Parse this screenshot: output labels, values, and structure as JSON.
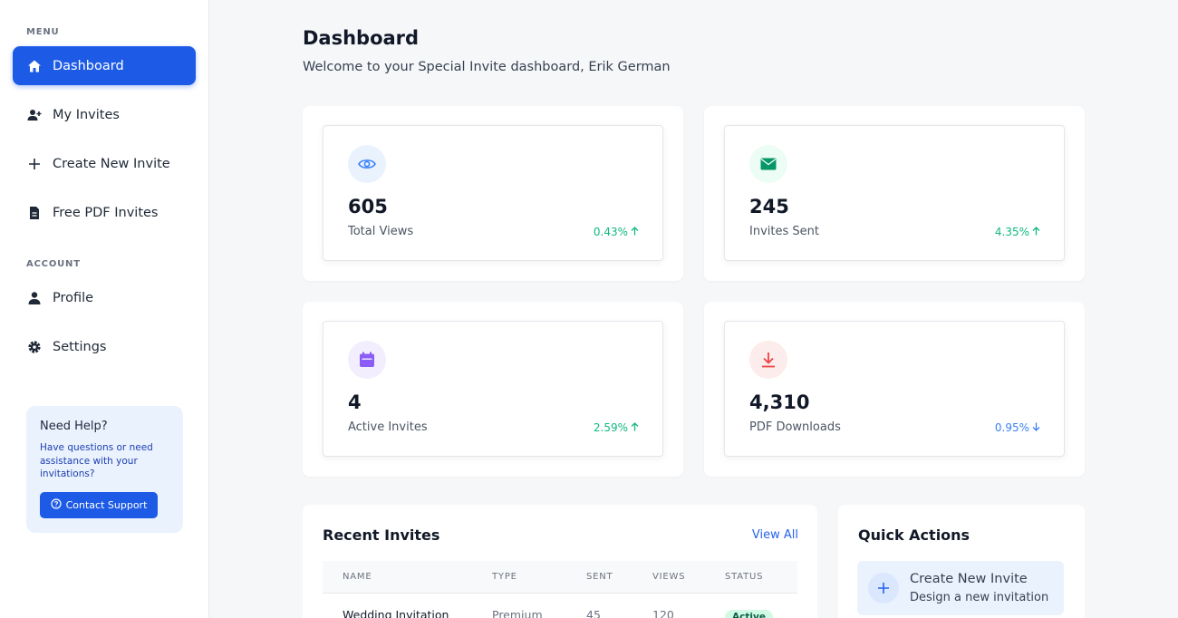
{
  "sidebar": {
    "menu_label": "MENU",
    "account_label": "ACCOUNT",
    "items": [
      {
        "label": "Dashboard",
        "icon": "home-icon"
      },
      {
        "label": "My Invites",
        "icon": "user-plus-icon"
      },
      {
        "label": "Create New Invite",
        "icon": "plus-icon"
      },
      {
        "label": "Free PDF Invites",
        "icon": "document-icon"
      },
      {
        "label": "Profile",
        "icon": "user-icon"
      },
      {
        "label": "Settings",
        "icon": "gear-icon"
      }
    ],
    "help": {
      "title": "Need Help?",
      "text": "Have questions or need assistance with your invitations?",
      "button": "Contact Support"
    }
  },
  "header": {
    "title": "Dashboard",
    "subtitle": "Welcome to your Special Invite dashboard, Erik German"
  },
  "stats": [
    {
      "value": "605",
      "label": "Total Views",
      "change": "0.43%",
      "trend": "up",
      "icon": "eye-icon",
      "color": "#3b82f6",
      "bg": "#eaf2fe",
      "change_color": "#10b981"
    },
    {
      "value": "245",
      "label": "Invites Sent",
      "change": "4.35%",
      "trend": "up",
      "icon": "envelope-icon",
      "color": "#059669",
      "bg": "#ecfdf5",
      "change_color": "#10b981"
    },
    {
      "value": "4",
      "label": "Active Invites",
      "change": "2.59%",
      "trend": "up",
      "icon": "calendar-icon",
      "color": "#8b5cf6",
      "bg": "#f3eefe",
      "change_color": "#10b981"
    },
    {
      "value": "4,310",
      "label": "PDF Downloads",
      "change": "0.95%",
      "trend": "down",
      "icon": "download-icon",
      "color": "#ef4444",
      "bg": "#fdecec",
      "change_color": "#3b82f6"
    }
  ],
  "recent": {
    "title": "Recent Invites",
    "view_all": "View All",
    "columns": [
      "NAME",
      "TYPE",
      "SENT",
      "VIEWS",
      "STATUS"
    ],
    "rows": [
      {
        "name": "Wedding Invitation",
        "type": "Premium",
        "sent": "45",
        "views": "120",
        "status": "Active"
      }
    ]
  },
  "quick_actions": {
    "title": "Quick Actions",
    "items": [
      {
        "title": "Create New Invite",
        "subtitle": "Design a new invitation",
        "icon": "plus-icon"
      }
    ]
  }
}
